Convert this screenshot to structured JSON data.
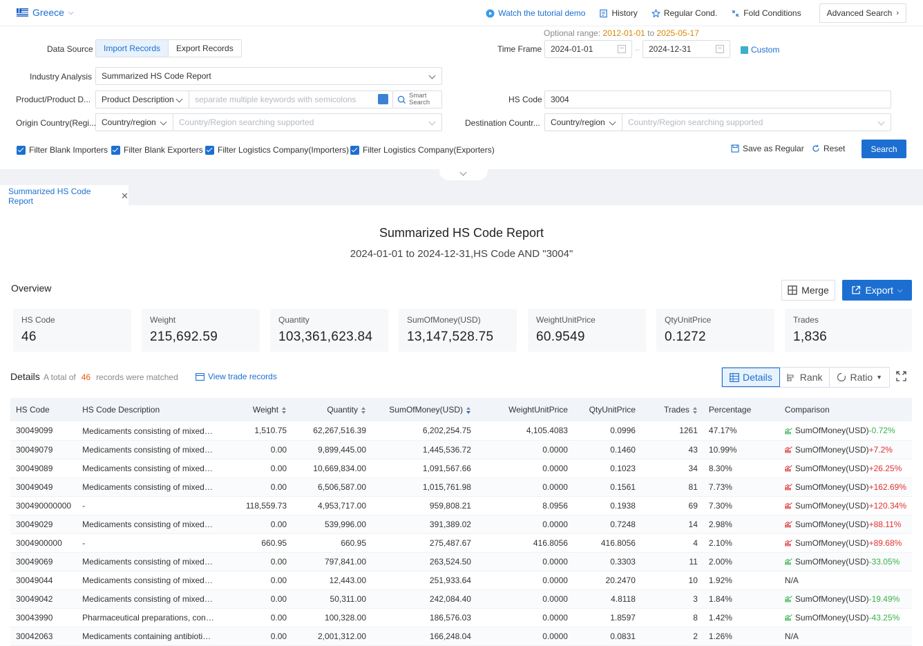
{
  "header": {
    "country": "Greece",
    "links": {
      "tutorial": "Watch the tutorial demo",
      "history": "History",
      "regular": "Regular Cond.",
      "fold": "Fold Conditions",
      "advanced": "Advanced Search"
    }
  },
  "form": {
    "data_source_label": "Data Source",
    "data_source_options": [
      "Import Records",
      "Export Records"
    ],
    "optional_range_label": "Optional range",
    "optional_from": "2012-01-01",
    "optional_to_word": "to",
    "optional_to": "2025-05-17",
    "time_frame_label": "Time Frame",
    "date_from": "2024-01-01",
    "date_to": "2024-12-31",
    "custom_label": "Custom",
    "industry_label": "Industry Analysis",
    "industry_value": "Summarized HS Code Report",
    "product_label": "Product/Product D...",
    "product_type": "Product Description",
    "product_placeholder": "separate multiple keywords with semicolons",
    "smart_search": "Smart Search",
    "hs_code_label": "HS Code",
    "hs_code_value": "3004",
    "origin_label": "Origin Country(Regi...",
    "origin_type": "Country/region",
    "origin_placeholder": "Country/Region searching supported",
    "destination_label": "Destination Countr...",
    "destination_type": "Country/region",
    "destination_placeholder": "Country/Region searching supported",
    "filters": [
      "Filter Blank Importers",
      "Filter Blank Exporters",
      "Filter Logistics Company(Importers)",
      "Filter Logistics Company(Exporters)"
    ],
    "save_regular": "Save as Regular",
    "reset": "Reset",
    "search": "Search"
  },
  "tab": {
    "label": "Summarized HS Code Report"
  },
  "report": {
    "title": "Summarized HS Code Report",
    "subtitle": "2024-01-01 to 2024-12-31,HS Code AND \"3004\""
  },
  "overview": {
    "title": "Overview",
    "merge": "Merge",
    "export": "Export",
    "stats": [
      {
        "label": "HS Code",
        "value": "46"
      },
      {
        "label": "Weight",
        "value": "215,692.59"
      },
      {
        "label": "Quantity",
        "value": "103,361,623.84"
      },
      {
        "label": "SumOfMoney(USD)",
        "value": "13,147,528.75"
      },
      {
        "label": "WeightUnitPrice",
        "value": "60.9549"
      },
      {
        "label": "QtyUnitPrice",
        "value": "0.1272"
      },
      {
        "label": "Trades",
        "value": "1,836"
      }
    ]
  },
  "details": {
    "title": "Details",
    "total_prefix": "A total of",
    "total_count": "46",
    "total_suffix": "records were matched",
    "view_trade": "View trade records",
    "view_tabs": [
      "Details",
      "Rank",
      "Ratio"
    ],
    "columns": [
      "HS Code",
      "HS Code Description",
      "Weight",
      "Quantity",
      "SumOfMoney(USD)",
      "WeightUnitPrice",
      "QtyUnitPrice",
      "Trades",
      "Percentage",
      "Comparison"
    ],
    "rows": [
      {
        "code": "30049099",
        "desc": "Medicaments consisting of mixed or...",
        "weight": "1,510.75",
        "qty": "62,267,516.39",
        "money": "6,202,254.75",
        "wup": "4,105.4083",
        "qup": "0.0996",
        "trades": "1261",
        "pct": "47.17%",
        "cmp_label": "SumOfMoney(USD)",
        "cmp": "-0.72%",
        "dir": "down"
      },
      {
        "code": "30049079",
        "desc": "Medicaments consisting of mixed or...",
        "weight": "0.00",
        "qty": "9,899,445.00",
        "money": "1,445,536.72",
        "wup": "0.0000",
        "qup": "0.1460",
        "trades": "43",
        "pct": "10.99%",
        "cmp_label": "SumOfMoney(USD)",
        "cmp": "+7.2%",
        "dir": "up"
      },
      {
        "code": "30049089",
        "desc": "Medicaments consisting of mixed or...",
        "weight": "0.00",
        "qty": "10,669,834.00",
        "money": "1,091,567.66",
        "wup": "0.0000",
        "qup": "0.1023",
        "trades": "34",
        "pct": "8.30%",
        "cmp_label": "SumOfMoney(USD)",
        "cmp": "+26.25%",
        "dir": "up"
      },
      {
        "code": "30049049",
        "desc": "Medicaments consisting of mixed or...",
        "weight": "0.00",
        "qty": "6,506,587.00",
        "money": "1,015,761.98",
        "wup": "0.0000",
        "qup": "0.1561",
        "trades": "81",
        "pct": "7.73%",
        "cmp_label": "SumOfMoney(USD)",
        "cmp": "+162.69%",
        "dir": "up"
      },
      {
        "code": "300490000000",
        "desc": "-",
        "weight": "118,559.73",
        "qty": "4,953,717.00",
        "money": "959,808.21",
        "wup": "8.0956",
        "qup": "0.1938",
        "trades": "69",
        "pct": "7.30%",
        "cmp_label": "SumOfMoney(USD)",
        "cmp": "+120.34%",
        "dir": "up"
      },
      {
        "code": "30049029",
        "desc": "Medicaments consisting of mixed or...",
        "weight": "0.00",
        "qty": "539,996.00",
        "money": "391,389.02",
        "wup": "0.0000",
        "qup": "0.7248",
        "trades": "14",
        "pct": "2.98%",
        "cmp_label": "SumOfMoney(USD)",
        "cmp": "+88.11%",
        "dir": "up"
      },
      {
        "code": "3004900000",
        "desc": "-",
        "weight": "660.95",
        "qty": "660.95",
        "money": "275,487.67",
        "wup": "416.8056",
        "qup": "416.8056",
        "trades": "4",
        "pct": "2.10%",
        "cmp_label": "SumOfMoney(USD)",
        "cmp": "+89.68%",
        "dir": "up"
      },
      {
        "code": "30049069",
        "desc": "Medicaments consisting of mixed or...",
        "weight": "0.00",
        "qty": "797,841.00",
        "money": "263,524.50",
        "wup": "0.0000",
        "qup": "0.3303",
        "trades": "11",
        "pct": "2.00%",
        "cmp_label": "SumOfMoney(USD)",
        "cmp": "-33.05%",
        "dir": "down"
      },
      {
        "code": "30049044",
        "desc": "Medicaments consisting of mixed or...",
        "weight": "0.00",
        "qty": "12,443.00",
        "money": "251,933.64",
        "wup": "0.0000",
        "qup": "20.2470",
        "trades": "10",
        "pct": "1.92%",
        "cmp_label": "N/A",
        "cmp": "",
        "dir": "none"
      },
      {
        "code": "30049042",
        "desc": "Medicaments consisting of mixed or...",
        "weight": "0.00",
        "qty": "50,311.00",
        "money": "242,084.40",
        "wup": "0.0000",
        "qup": "4.8118",
        "trades": "3",
        "pct": "1.84%",
        "cmp_label": "SumOfMoney(USD)",
        "cmp": "-19.49%",
        "dir": "down"
      },
      {
        "code": "30043990",
        "desc": "Pharmaceutical preparations, contai...",
        "weight": "0.00",
        "qty": "100,328.00",
        "money": "186,576.03",
        "wup": "0.0000",
        "qup": "1.8597",
        "trades": "8",
        "pct": "1.42%",
        "cmp_label": "SumOfMoney(USD)",
        "cmp": "-43.25%",
        "dir": "down"
      },
      {
        "code": "30042063",
        "desc": "Medicaments containing antibiotics,...",
        "weight": "0.00",
        "qty": "2,001,312.00",
        "money": "166,248.04",
        "wup": "0.0000",
        "qup": "0.0831",
        "trades": "2",
        "pct": "1.26%",
        "cmp_label": "N/A",
        "cmp": "",
        "dir": "none"
      }
    ]
  },
  "colors": {
    "accent": "#1c6fd1",
    "up": "#e03131",
    "down": "#37b24d",
    "highlight": "#d48806"
  }
}
